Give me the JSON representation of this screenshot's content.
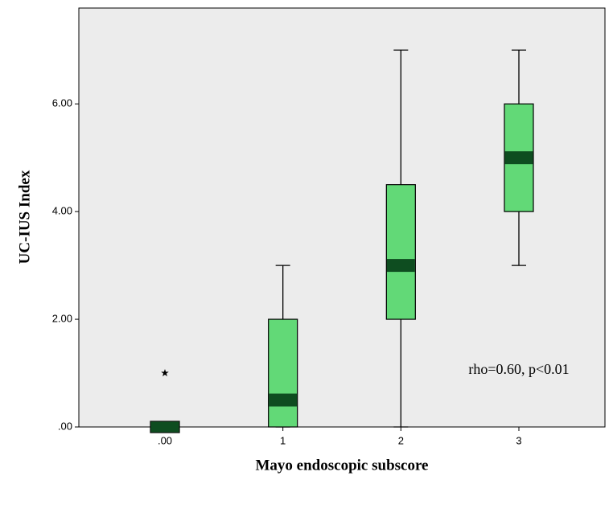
{
  "chart_data": {
    "type": "box",
    "x_label": "Mayo endoscopic subscore",
    "y_label": "UC-IUS Index",
    "annotation": "rho=0.60, p<0.01",
    "categories": [
      ".00",
      "1",
      "2",
      "3"
    ],
    "min": [
      0,
      0,
      0,
      3
    ],
    "q1": [
      0,
      0,
      2,
      4
    ],
    "median": [
      0,
      0.5,
      3,
      5
    ],
    "q3": [
      0,
      2,
      4.5,
      6
    ],
    "max": [
      0,
      3,
      7,
      7
    ],
    "outliers": [
      [
        1
      ],
      [],
      [],
      []
    ],
    "box_color": "#62d977",
    "median_color": "#0e4d20",
    "background": "#ececec",
    "ylim": [
      0,
      7.78
    ],
    "yticks": [
      {
        "value": 0,
        "label": ".00"
      },
      {
        "value": 2,
        "label": "2.00"
      },
      {
        "value": 4,
        "label": "4.00"
      },
      {
        "value": 6,
        "label": "6.00"
      }
    ]
  }
}
